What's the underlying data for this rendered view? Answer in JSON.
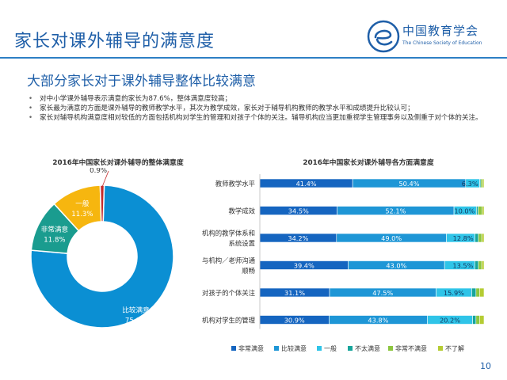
{
  "slide": {
    "title": "家长对课外辅导的满意度",
    "subtitle": "大部分家长对于课外辅导整体比较满意",
    "bullets": [
      "对中小学课外辅导表示满意的家长为87.6%，整体满意度较高；",
      "家长最为满意的方面是课外辅导的教师教学水平，其次为教学成效，家长对于辅导机构教师的教学水平和成绩提升比较认可；",
      "家长对辅导机构满意度相对较低的方面包括机构对学生的管理和对孩子个体的关注。辅导机构应当更加重视学生管理事务以及侧重于对个体的关注。"
    ],
    "page_number": "10",
    "logo": {
      "name_cn": "中国教育学会",
      "name_en": "The Chinese Society of Education",
      "icon": "csoe-e-logo-icon"
    }
  },
  "chart_data": [
    {
      "type": "pie",
      "style": "donut",
      "title": "2016年中国家长对课外辅导的整体满意度",
      "categories": [
        "比较满意",
        "非常满意",
        "一般",
        "不太满意"
      ],
      "values": [
        75.8,
        11.8,
        11.3,
        0.9
      ],
      "labels": [
        "75.8%",
        "11.8%",
        "11.3%",
        "0.9%"
      ],
      "colors": [
        "#0b8fd3",
        "#1a9c8f",
        "#f6b60f",
        "#c42a2a"
      ]
    },
    {
      "type": "bar",
      "orientation": "horizontal",
      "stacked": true,
      "title": "2016年中国家长对课外辅导各方面满意度",
      "categories": [
        "教师教学水平",
        "教学成效",
        "机构的教学体系和系统设置",
        "与机构／老师沟通顺畅",
        "对孩子的个体关注",
        "机构对学生的管理"
      ],
      "category_lines": [
        [
          "教师教学水平"
        ],
        [
          "教学成效"
        ],
        [
          "机构的教学体系和",
          "系统设置"
        ],
        [
          "与机构／老师沟通",
          "顺畅"
        ],
        [
          "对孩子的个体关注"
        ],
        [
          "机构对学生的管理"
        ]
      ],
      "series": [
        {
          "name": "非常满意",
          "color": "#1565c0",
          "values": [
            41.4,
            34.5,
            34.2,
            39.4,
            31.1,
            30.9
          ],
          "labels": [
            "41.4%",
            "34.5%",
            "34.2%",
            "39.4%",
            "31.1%",
            "30.9%"
          ]
        },
        {
          "name": "比较满意",
          "color": "#1e96d6",
          "values": [
            50.4,
            52.1,
            49.0,
            43.0,
            47.5,
            43.8
          ],
          "labels": [
            "50.4%",
            "52.1%",
            "49.0%",
            "43.0%",
            "47.5%",
            "43.8%"
          ]
        },
        {
          "name": "一般",
          "color": "#2fc4e8",
          "values": [
            6.3,
            10.0,
            12.8,
            13.5,
            15.9,
            20.2
          ],
          "labels": [
            "6.3%",
            "10.0%",
            "12.8%",
            "13.5%",
            "15.9%",
            "20.2%"
          ]
        },
        {
          "name": "不太满意",
          "color": "#17a59b",
          "values": [
            0.5,
            0.8,
            1.5,
            1.6,
            1.9,
            1.5
          ],
          "labels": [
            "",
            "",
            "",
            "",
            "",
            ""
          ]
        },
        {
          "name": "非常不满意",
          "color": "#8cc63f",
          "values": [
            0.8,
            1.8,
            1.5,
            1.5,
            1.6,
            1.6
          ],
          "labels": [
            "",
            "",
            "",
            "",
            "",
            ""
          ]
        },
        {
          "name": "不了解",
          "color": "#b5cc33",
          "values": [
            0.6,
            0.8,
            1.0,
            1.0,
            2.0,
            2.0
          ],
          "labels": [
            "",
            "",
            "",
            "",
            "",
            ""
          ]
        }
      ],
      "xlim": [
        0,
        100
      ],
      "legend_position": "bottom"
    }
  ]
}
